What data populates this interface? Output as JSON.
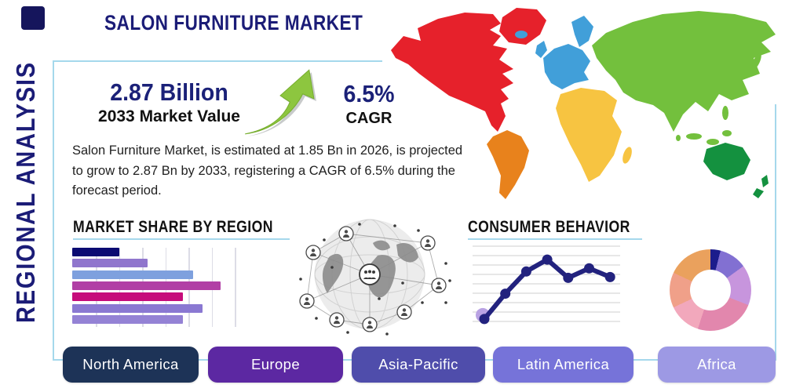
{
  "header": {
    "title": "SALON FURNITURE MARKET",
    "side_label": "REGIONAL ANALYSIS"
  },
  "stats": {
    "market_value": "2.87 Billion",
    "market_value_label": "2033 Market Value",
    "cagr_value": "6.5%",
    "cagr_label": "CAGR"
  },
  "description": "Salon Furniture Market, is estimated at 1.85 Bn in 2026, is projected to grow to 2.87 Bn by 2033, registering a CAGR of 6.5% during the forecast period.",
  "chart_data": [
    {
      "type": "bar",
      "orientation": "horizontal",
      "title": "MARKET SHARE BY REGION",
      "values": [
        29,
        46,
        74,
        91,
        68,
        80,
        68
      ],
      "xlim": [
        0,
        100
      ],
      "categories_labeled": false,
      "grid": true,
      "colors": [
        "#0b0b72",
        "#9076cd",
        "#7ea0de",
        "#b13fa5",
        "#c60c7b",
        "#8a78d2",
        "#9482d5"
      ]
    },
    {
      "type": "line",
      "title": "CONSUMER BEHAVIOR",
      "x": [
        1,
        2,
        3,
        4,
        5,
        6,
        7
      ],
      "values": [
        1.1,
        4.3,
        7.1,
        8.6,
        6.3,
        7.5,
        6.4
      ],
      "ylim": [
        0,
        10
      ],
      "axes_labeled": false,
      "grid": "horizontal",
      "line_color": "#22227e",
      "first_point_halo_color": "#b9a2e3"
    },
    {
      "type": "pie",
      "subtype": "donut",
      "title": "",
      "values": [
        4,
        11,
        16,
        24,
        13,
        14,
        18
      ],
      "labels_shown": false,
      "colors": [
        "#1c1c8c",
        "#8270d2",
        "#c795dd",
        "#e287ad",
        "#f2a8bc",
        "#f0a089",
        "#eaa15d"
      ]
    }
  ],
  "map": {
    "regions": [
      {
        "name": "north-america",
        "color": "#e6212b"
      },
      {
        "name": "greenland",
        "color": "#e6212b"
      },
      {
        "name": "south-america",
        "color": "#e8821c"
      },
      {
        "name": "europe",
        "color": "#419fd9"
      },
      {
        "name": "africa",
        "color": "#f7c441"
      },
      {
        "name": "asia",
        "color": "#73c03d"
      },
      {
        "name": "oceania",
        "color": "#14913f"
      }
    ]
  },
  "buttons": [
    {
      "label": "North America",
      "color": "#1d3357"
    },
    {
      "label": "Europe",
      "color": "#5c28a2"
    },
    {
      "label": "Asia-Pacific",
      "color": "#4f4dab"
    },
    {
      "label": "Latin America",
      "color": "#7673d9"
    },
    {
      "label": "Africa",
      "color": "#9d99e4"
    }
  ],
  "colors": {
    "panel_border": "#a5d8ec",
    "navy_text": "#1b1c77",
    "arrow_green": "#8dc63f"
  }
}
